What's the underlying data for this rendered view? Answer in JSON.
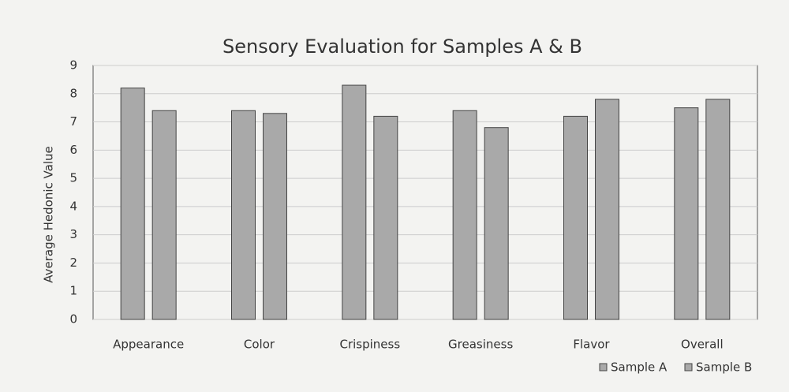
{
  "chart_data": {
    "type": "bar",
    "title": "Sensory Evaluation for Samples A & B",
    "y_label": "Average Hedonic Value",
    "categories": [
      "Appearance",
      "Color",
      "Crispiness",
      "Greasiness",
      "Flavor",
      "Overall"
    ],
    "series": [
      {
        "name": "Sample A",
        "color": "#a9a9a9",
        "values": [
          8.2,
          7.4,
          8.3,
          7.4,
          7.2,
          7.5
        ]
      },
      {
        "name": "Sample B",
        "color": "#a9a9a9",
        "values": [
          7.4,
          7.3,
          7.2,
          6.8,
          7.8,
          7.8
        ]
      }
    ],
    "ylim": [
      0,
      9
    ],
    "yticks": [
      0,
      1,
      2,
      3,
      4,
      5,
      6,
      7,
      8,
      9
    ],
    "grid": true,
    "legend": "bottom-right"
  }
}
